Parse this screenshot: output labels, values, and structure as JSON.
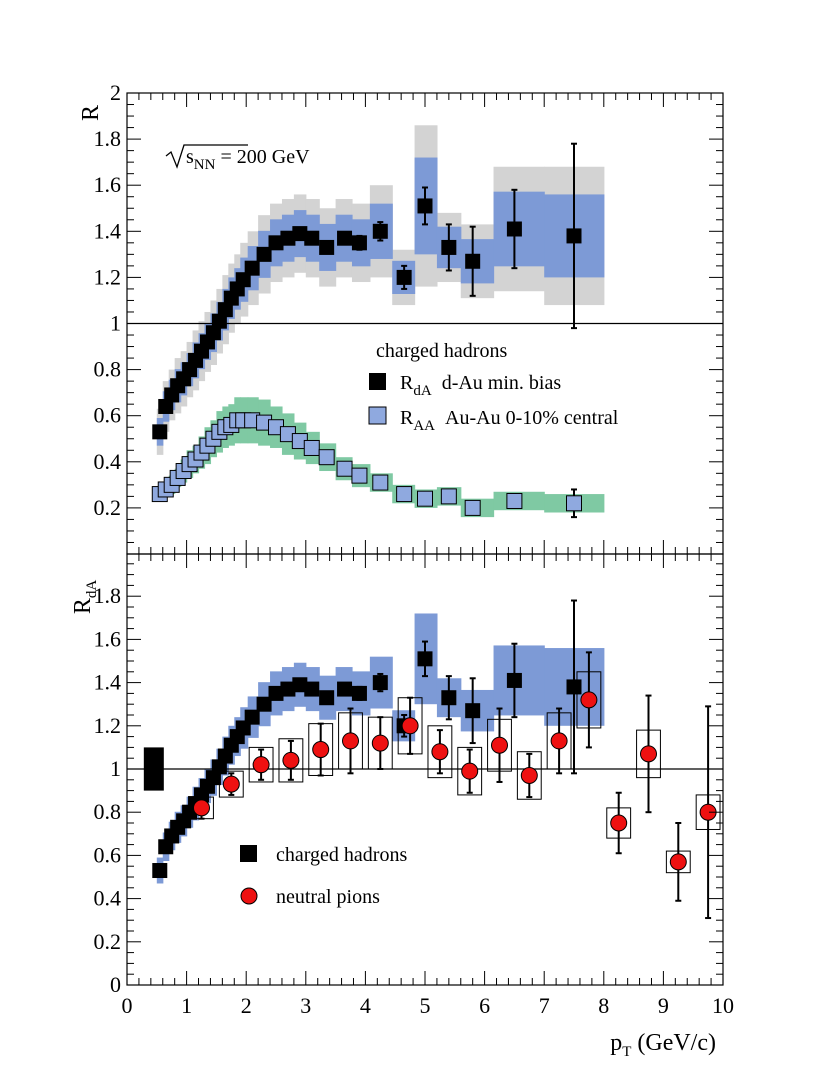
{
  "chart_data": [
    {
      "type": "scatter",
      "panel": "top",
      "ylabel": "R",
      "ylim": [
        0,
        2
      ],
      "yticks": [
        "0.2",
        "0.4",
        "0.6",
        "0.8",
        "1",
        "1.2",
        "1.4",
        "1.6",
        "1.8",
        "2"
      ],
      "annotation": {
        "prefix": "s",
        "sub": "NN",
        "suffix": " = 200 GeV"
      },
      "legend": {
        "title": "charged hadrons",
        "entries": [
          {
            "key": "rda",
            "symbol": "R",
            "sub": "dA",
            "label": "d-Au min. bias"
          },
          {
            "key": "raa",
            "symbol": "R",
            "sub": "AA",
            "label": "Au-Au 0-10% central"
          }
        ]
      },
      "series": [
        {
          "name": "R_dA d-Au min. bias",
          "marker": "black-square",
          "points": [
            {
              "x": 0.55,
              "y": 0.53,
              "sys": 0.1
            },
            {
              "x": 0.65,
              "y": 0.64,
              "sys": 0.11
            },
            {
              "x": 0.75,
              "y": 0.69,
              "sys": 0.11
            },
            {
              "x": 0.85,
              "y": 0.73,
              "sys": 0.12
            },
            {
              "x": 0.95,
              "y": 0.76,
              "sys": 0.12
            },
            {
              "x": 1.05,
              "y": 0.8,
              "sys": 0.12
            },
            {
              "x": 1.15,
              "y": 0.84,
              "sys": 0.13
            },
            {
              "x": 1.25,
              "y": 0.88,
              "sys": 0.13
            },
            {
              "x": 1.35,
              "y": 0.92,
              "sys": 0.13
            },
            {
              "x": 1.45,
              "y": 0.96,
              "sys": 0.14
            },
            {
              "x": 1.55,
              "y": 1.01,
              "sys": 0.14
            },
            {
              "x": 1.65,
              "y": 1.06,
              "sys": 0.15
            },
            {
              "x": 1.75,
              "y": 1.11,
              "sys": 0.15
            },
            {
              "x": 1.85,
              "y": 1.15,
              "sys": 0.15
            },
            {
              "x": 1.95,
              "y": 1.19,
              "sys": 0.16
            },
            {
              "x": 2.1,
              "y": 1.24,
              "sys": 0.16
            },
            {
              "x": 2.3,
              "y": 1.3,
              "sys": 0.17
            },
            {
              "x": 2.5,
              "y": 1.35,
              "sys": 0.17
            },
            {
              "x": 2.7,
              "y": 1.37,
              "sys": 0.17
            },
            {
              "x": 2.9,
              "y": 1.39,
              "sys": 0.17
            },
            {
              "x": 3.1,
              "y": 1.37,
              "sys": 0.17
            },
            {
              "x": 3.35,
              "y": 1.33,
              "sys": 0.17
            },
            {
              "x": 3.65,
              "y": 1.37,
              "sys": 0.17,
              "err": 0.02
            },
            {
              "x": 3.9,
              "y": 1.35,
              "sys": 0.17,
              "err": 0.03
            },
            {
              "x": 4.25,
              "y": 1.4,
              "sys": 0.2,
              "err": 0.04
            },
            {
              "x": 4.65,
              "y": 1.2,
              "sys": 0.12,
              "err": 0.05
            },
            {
              "x": 5.0,
              "y": 1.51,
              "sys": 0.35,
              "err": 0.08
            },
            {
              "x": 5.4,
              "y": 1.33,
              "sys": 0.15,
              "err": 0.1
            },
            {
              "x": 5.8,
              "y": 1.27,
              "sys": 0.16,
              "err": 0.15
            },
            {
              "x": 6.5,
              "y": 1.41,
              "sys": 0.27,
              "err": 0.17
            },
            {
              "x": 7.5,
              "y": 1.38,
              "sys": 0.3,
              "err": 0.4
            }
          ]
        },
        {
          "name": "R_AA Au-Au 0-10% central",
          "marker": "blue-square",
          "points": [
            {
              "x": 0.55,
              "y": 0.26,
              "sys": 0.03
            },
            {
              "x": 0.65,
              "y": 0.28,
              "sys": 0.03
            },
            {
              "x": 0.75,
              "y": 0.3,
              "sys": 0.04
            },
            {
              "x": 0.85,
              "y": 0.33,
              "sys": 0.04
            },
            {
              "x": 0.95,
              "y": 0.36,
              "sys": 0.05
            },
            {
              "x": 1.05,
              "y": 0.39,
              "sys": 0.06
            },
            {
              "x": 1.15,
              "y": 0.41,
              "sys": 0.06
            },
            {
              "x": 1.25,
              "y": 0.44,
              "sys": 0.07
            },
            {
              "x": 1.35,
              "y": 0.47,
              "sys": 0.08
            },
            {
              "x": 1.45,
              "y": 0.5,
              "sys": 0.08
            },
            {
              "x": 1.55,
              "y": 0.53,
              "sys": 0.09
            },
            {
              "x": 1.65,
              "y": 0.55,
              "sys": 0.09
            },
            {
              "x": 1.75,
              "y": 0.56,
              "sys": 0.09
            },
            {
              "x": 1.85,
              "y": 0.58,
              "sys": 0.1
            },
            {
              "x": 1.95,
              "y": 0.58,
              "sys": 0.1
            },
            {
              "x": 2.1,
              "y": 0.58,
              "sys": 0.1
            },
            {
              "x": 2.3,
              "y": 0.57,
              "sys": 0.1
            },
            {
              "x": 2.5,
              "y": 0.55,
              "sys": 0.09
            },
            {
              "x": 2.7,
              "y": 0.52,
              "sys": 0.09
            },
            {
              "x": 2.9,
              "y": 0.49,
              "sys": 0.08
            },
            {
              "x": 3.1,
              "y": 0.46,
              "sys": 0.07
            },
            {
              "x": 3.35,
              "y": 0.42,
              "sys": 0.06
            },
            {
              "x": 3.65,
              "y": 0.37,
              "sys": 0.05
            },
            {
              "x": 3.9,
              "y": 0.34,
              "sys": 0.05
            },
            {
              "x": 4.25,
              "y": 0.31,
              "sys": 0.04
            },
            {
              "x": 4.65,
              "y": 0.26,
              "sys": 0.04
            },
            {
              "x": 5.0,
              "y": 0.24,
              "sys": 0.04
            },
            {
              "x": 5.4,
              "y": 0.25,
              "sys": 0.04
            },
            {
              "x": 5.8,
              "y": 0.2,
              "sys": 0.04
            },
            {
              "x": 6.5,
              "y": 0.23,
              "sys": 0.04
            },
            {
              "x": 7.5,
              "y": 0.22,
              "sys": 0.04,
              "err": 0.06
            }
          ]
        }
      ]
    },
    {
      "type": "scatter",
      "panel": "bottom",
      "ylabel": {
        "symbol": "R",
        "sub": "dA"
      },
      "xlabel": {
        "symbol": "p",
        "sub": "T",
        "suffix": " (GeV/c)"
      },
      "xlim": [
        0,
        10
      ],
      "ylim": [
        0,
        2
      ],
      "xticks": [
        "0",
        "1",
        "2",
        "3",
        "4",
        "5",
        "6",
        "7",
        "8",
        "9",
        "10"
      ],
      "yticks": [
        "0",
        "0.2",
        "0.4",
        "0.6",
        "0.8",
        "1",
        "1.2",
        "1.4",
        "1.6",
        "1.8"
      ],
      "normalization_box": {
        "x": 0.45,
        "y": 1.0,
        "half_height": 0.1
      },
      "legend": {
        "entries": [
          {
            "key": "hadrons",
            "label": "charged hadrons"
          },
          {
            "key": "pions",
            "label": "neutral pions"
          }
        ]
      },
      "series": [
        {
          "name": "charged hadrons",
          "marker": "black-square",
          "same_points_as": "R_dA d-Au min. bias"
        },
        {
          "name": "neutral pions",
          "marker": "red-circle",
          "points": [
            {
              "x": 1.25,
              "y": 0.82,
              "err": 0.05,
              "sys": 0.05
            },
            {
              "x": 1.75,
              "y": 0.93,
              "err": 0.05,
              "sys": 0.06
            },
            {
              "x": 2.25,
              "y": 1.02,
              "err": 0.07,
              "sys": 0.08
            },
            {
              "x": 2.75,
              "y": 1.04,
              "err": 0.09,
              "sys": 0.1
            },
            {
              "x": 3.25,
              "y": 1.09,
              "err": 0.12,
              "sys": 0.12
            },
            {
              "x": 3.75,
              "y": 1.13,
              "err": 0.15,
              "sys": 0.13
            },
            {
              "x": 4.25,
              "y": 1.12,
              "err": 0.12,
              "sys": 0.12
            },
            {
              "x": 4.75,
              "y": 1.2,
              "err": 0.13,
              "sys": 0.13
            },
            {
              "x": 5.25,
              "y": 1.08,
              "err": 0.1,
              "sys": 0.12
            },
            {
              "x": 5.75,
              "y": 0.99,
              "err": 0.1,
              "sys": 0.11
            },
            {
              "x": 6.25,
              "y": 1.11,
              "err": 0.17,
              "sys": 0.12
            },
            {
              "x": 6.75,
              "y": 0.97,
              "err": 0.1,
              "sys": 0.11
            },
            {
              "x": 7.25,
              "y": 1.13,
              "err": 0.15,
              "sys": 0.13
            },
            {
              "x": 7.75,
              "y": 1.32,
              "err": 0.22,
              "sys": 0.13
            },
            {
              "x": 8.25,
              "y": 0.75,
              "err": 0.14,
              "sys": 0.07
            },
            {
              "x": 8.75,
              "y": 1.07,
              "err": 0.27,
              "sys": 0.11
            },
            {
              "x": 9.25,
              "y": 0.57,
              "err": 0.18,
              "sys": 0.05
            },
            {
              "x": 9.75,
              "y": 0.8,
              "err": 0.49,
              "sys": 0.08
            }
          ]
        }
      ]
    }
  ],
  "colors": {
    "blue_band": "#7d9ad6",
    "gray_band": "#d3d3d3",
    "green_band": "#7fc9a3",
    "blue_marker": "#8fa9df",
    "red_marker": "#ee1111"
  }
}
